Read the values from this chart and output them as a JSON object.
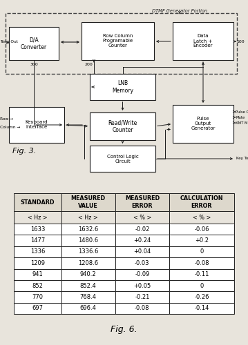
{
  "fig_bg": "#e8e4dc",
  "fig3_label": "Fig. 3.",
  "fig6_label": "Fig. 6.",
  "dtmf_label": "DTMF Generator Portion",
  "table_header": [
    "STANDARD",
    "MEASURED\nVALUE",
    "MEASURED\nERROR",
    "CALCULATION\nERROR"
  ],
  "table_units": [
    "< Hz >",
    "< Hz >",
    "< % >",
    "< % >"
  ],
  "table_data": [
    [
      "1633",
      "1632.6",
      "-0.02",
      "-0.06"
    ],
    [
      "1477",
      "1480.6",
      "+0.24",
      "+0.2"
    ],
    [
      "1336",
      "1336.6",
      "+0.04",
      "0"
    ],
    [
      "1209",
      "1208.6",
      "-0.03",
      "-0.08"
    ],
    [
      "941",
      "940.2",
      "-0.09",
      "-0.11"
    ],
    [
      "852",
      "852.4",
      "+0.05",
      "0"
    ],
    [
      "770",
      "768.4",
      "-0.21",
      "-0.26"
    ],
    [
      "697",
      "696.4",
      "-0.08",
      "-0.14"
    ]
  ],
  "lc": "#1a1a1a",
  "lw": 0.8
}
